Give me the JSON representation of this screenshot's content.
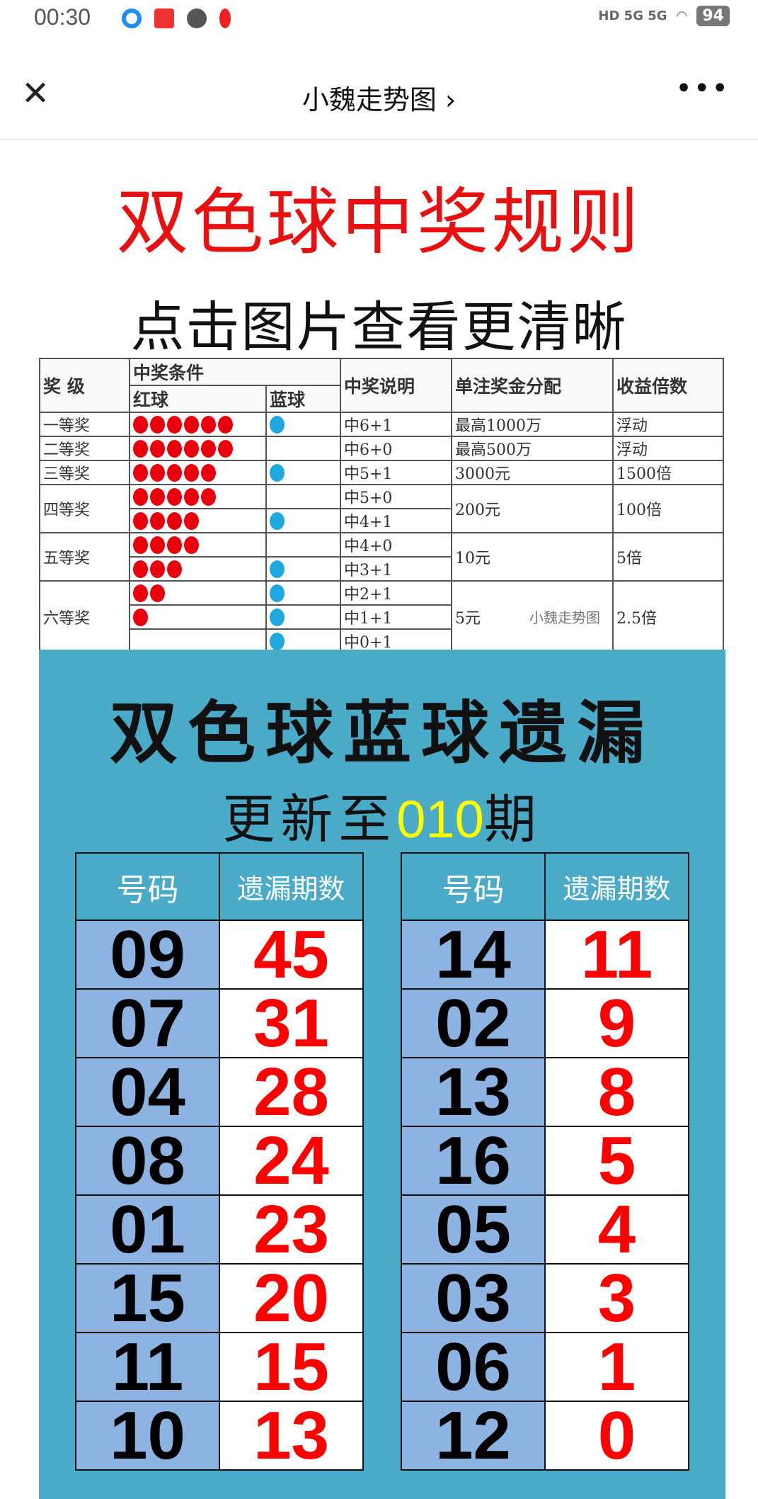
{
  "status_bar": {
    "time": "00:30",
    "network": "HD 5G 5G",
    "battery": "94"
  },
  "nav": {
    "title": "小魏走势图 ›",
    "close_icon": "close-icon",
    "more_icon": "more-icon"
  },
  "heading": {
    "title": "双色球中奖规则",
    "subtitle": "点击图片查看更清晰"
  },
  "prize_table": {
    "headers": {
      "level": "奖 级",
      "condition": "中奖条件",
      "red": "红球",
      "blue": "蓝球",
      "desc": "中奖说明",
      "amount": "单注奖金分配",
      "multiple": "收益倍数"
    },
    "colors": {
      "red": "#e8000c",
      "blue": "#1ea8e0"
    },
    "groups": [
      {
        "level": "一等奖",
        "amount": "最高1000万",
        "multiple": "浮动",
        "subs": [
          {
            "red": 6,
            "blue": 1,
            "desc": "中6+1"
          }
        ]
      },
      {
        "level": "二等奖",
        "amount": "最高500万",
        "multiple": "浮动",
        "subs": [
          {
            "red": 6,
            "blue": 0,
            "desc": "中6+0"
          }
        ]
      },
      {
        "level": "三等奖",
        "amount": "3000元",
        "multiple": "1500倍",
        "subs": [
          {
            "red": 5,
            "blue": 1,
            "desc": "中5+1"
          }
        ]
      },
      {
        "level": "四等奖",
        "amount": "200元",
        "multiple": "100倍",
        "subs": [
          {
            "red": 5,
            "blue": 0,
            "desc": "中5+0"
          },
          {
            "red": 4,
            "blue": 1,
            "desc": "中4+1"
          }
        ]
      },
      {
        "level": "五等奖",
        "amount": "10元",
        "multiple": "5倍",
        "subs": [
          {
            "red": 4,
            "blue": 0,
            "desc": "中4+0"
          },
          {
            "red": 3,
            "blue": 1,
            "desc": "中3+1"
          }
        ]
      },
      {
        "level": "六等奖",
        "amount": "5元",
        "multiple": "2.5倍",
        "subs": [
          {
            "red": 2,
            "blue": 1,
            "desc": "中2+1"
          },
          {
            "red": 1,
            "blue": 1,
            "desc": "中1+1"
          },
          {
            "red": 0,
            "blue": 1,
            "desc": "中0+1"
          }
        ]
      }
    ],
    "watermark": "小魏走势图"
  },
  "blue_miss": {
    "title": "双色球蓝球遗漏",
    "update_prefix": "更新至",
    "update_issue": "010",
    "update_suffix": "期",
    "headers": {
      "number": "号码",
      "miss": "遗漏期数"
    },
    "left": [
      [
        "09",
        "45"
      ],
      [
        "07",
        "31"
      ],
      [
        "04",
        "28"
      ],
      [
        "08",
        "24"
      ],
      [
        "01",
        "23"
      ],
      [
        "15",
        "20"
      ],
      [
        "11",
        "15"
      ],
      [
        "10",
        "13"
      ]
    ],
    "right": [
      [
        "14",
        "11"
      ],
      [
        "02",
        "9"
      ],
      [
        "13",
        "8"
      ],
      [
        "16",
        "5"
      ],
      [
        "05",
        "4"
      ],
      [
        "03",
        "3"
      ],
      [
        "06",
        "1"
      ],
      [
        "12",
        "0"
      ]
    ],
    "colors": {
      "panel": "#4aabc8",
      "number_cell": "#8db3e2",
      "miss_text": "#ff0000",
      "issue_text": "#ffff00"
    }
  }
}
